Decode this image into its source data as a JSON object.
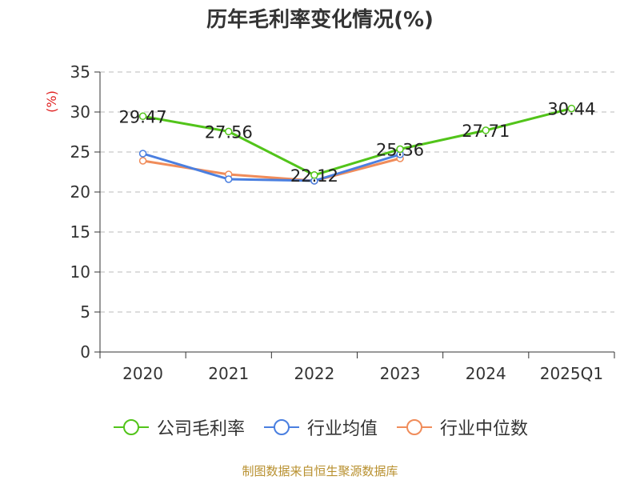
{
  "chart_data": {
    "type": "line",
    "title": "历年毛利率变化情况(%)",
    "ylabel": "(%)",
    "xlabel": "",
    "categories": [
      "2020",
      "2021",
      "2022",
      "2023",
      "2024",
      "2025Q1"
    ],
    "ylim": [
      0,
      35
    ],
    "yticks": [
      0,
      5,
      10,
      15,
      20,
      25,
      30,
      35
    ],
    "grid": true,
    "legend_position": "bottom",
    "series": [
      {
        "name": "公司毛利率",
        "color": "#52c41a",
        "values": [
          29.47,
          27.56,
          22.12,
          25.36,
          27.71,
          30.44
        ],
        "labels": [
          "29.47",
          "27.56",
          "22.12",
          "25.36",
          "27.71",
          "30.44"
        ]
      },
      {
        "name": "行业均值",
        "color": "#4a7fe0",
        "values": [
          24.8,
          21.6,
          21.4,
          24.7,
          null,
          null
        ]
      },
      {
        "name": "行业中位数",
        "color": "#f08c5a",
        "values": [
          23.9,
          22.2,
          21.4,
          24.2,
          null,
          null
        ]
      }
    ]
  },
  "source": "制图数据来自恒生聚源数据库"
}
